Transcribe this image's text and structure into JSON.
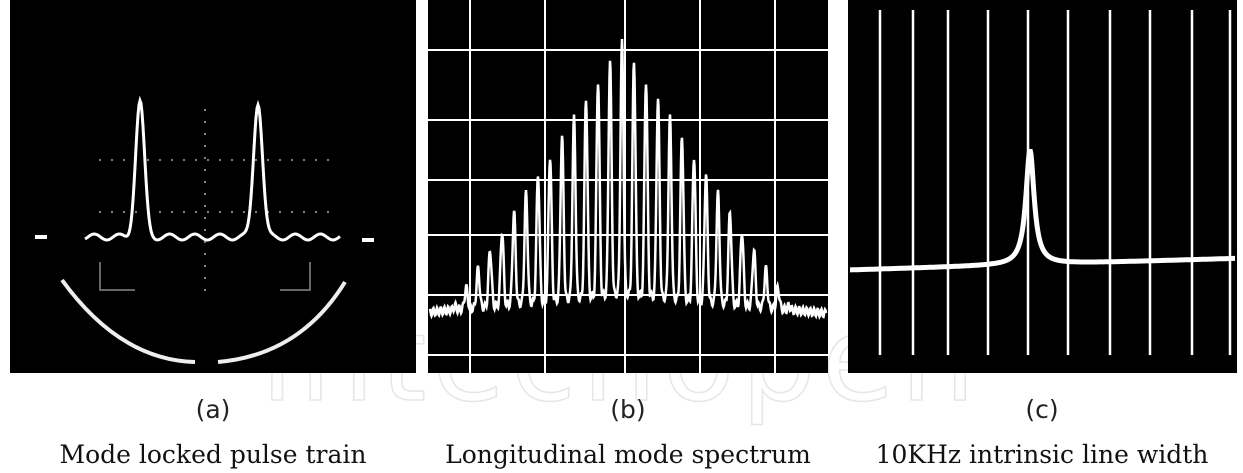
{
  "panels": [
    {
      "label": "(a)",
      "caption": "Mode locked pulse train"
    },
    {
      "label": "(b)",
      "caption": "Longitudinal mode spectrum"
    },
    {
      "label": "(c)",
      "caption": "10KHz intrinsic line width"
    }
  ],
  "watermark": "intechopen"
}
